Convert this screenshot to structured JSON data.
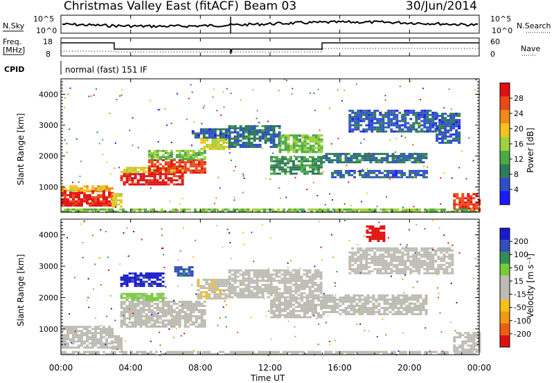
{
  "header": {
    "station": "Christmas Valley East (fitACF)",
    "beam": "Beam 03",
    "date": "30/Jun/2014"
  },
  "top_panels": {
    "nsky_label": "N.Sky",
    "nsearch_label": "N.Search",
    "nsky_ticks": [
      "10^5",
      "10^0"
    ],
    "nsearch_ticks": [
      "10^5",
      "10^0"
    ],
    "freq_label_1": "Freq.",
    "freq_label_2": "[MHz]",
    "freq_ticks": [
      "18",
      "8"
    ],
    "nave_ticks": [
      "60",
      "0"
    ],
    "nave_label": "Nave",
    "cpid_label": "CPID",
    "cpid_value": "normal (fast) 151 IF"
  },
  "x_axis": {
    "label": "Time UT",
    "ticks": [
      "00:00",
      "04:00",
      "08:00",
      "12:00",
      "16:00",
      "20:00",
      "00:00"
    ]
  },
  "colors": {
    "power": [
      "#1a1aff",
      "#2e4fc9",
      "#2f7a5a",
      "#4caa44",
      "#9fd13a",
      "#f5c31c",
      "#f18a19",
      "#ea4a14",
      "#e01010"
    ],
    "velocity": [
      "#e01010",
      "#ee5e10",
      "#f39a12",
      "#f4c019",
      "#bcbcb4",
      "#bcbcb4",
      "#7acb3a",
      "#2f8f55",
      "#3350b8",
      "#1a1acc"
    ]
  },
  "chart_data": [
    {
      "type": "heatmap",
      "name": "power",
      "ylabel": "Slant Range [km]",
      "xlabel": "",
      "x_range_hours": [
        0,
        24
      ],
      "ylim": [
        180,
        4500
      ],
      "yticks": [
        "1000",
        "2000",
        "3000",
        "4000"
      ],
      "colorbar": {
        "label": "Power [dB]",
        "range": [
          0,
          32
        ],
        "tick_labels": [
          "4",
          "8",
          "12",
          "16",
          "20",
          "24",
          "28"
        ]
      },
      "bands": [
        {
          "t0": 0.0,
          "t1": 2.9,
          "r0": 400,
          "r1": 900,
          "value": 30
        },
        {
          "t0": 0.0,
          "t1": 2.9,
          "r0": 850,
          "r1": 1050,
          "value": 20
        },
        {
          "t0": 2.9,
          "t1": 3.4,
          "r0": 350,
          "r1": 800,
          "value": 18
        },
        {
          "t0": 3.4,
          "t1": 7.0,
          "r0": 1050,
          "r1": 1450,
          "value": 30
        },
        {
          "t0": 3.4,
          "t1": 7.0,
          "r0": 1450,
          "r1": 1650,
          "value": 18
        },
        {
          "t0": 5.0,
          "t1": 8.3,
          "r0": 1450,
          "r1": 1900,
          "value": 28
        },
        {
          "t0": 5.0,
          "t1": 8.3,
          "r0": 1900,
          "r1": 2200,
          "value": 14
        },
        {
          "t0": 8.0,
          "t1": 9.6,
          "r0": 2200,
          "r1": 2600,
          "value": 18
        },
        {
          "t0": 7.5,
          "t1": 9.6,
          "r0": 2600,
          "r1": 2900,
          "value": 6
        },
        {
          "t0": 9.6,
          "t1": 12.5,
          "r0": 2300,
          "r1": 3000,
          "value": 8
        },
        {
          "t0": 12.5,
          "t1": 14.9,
          "r0": 2100,
          "r1": 2700,
          "value": 14
        },
        {
          "t0": 12.0,
          "t1": 14.9,
          "r0": 1400,
          "r1": 2000,
          "value": 10
        },
        {
          "t0": 15.0,
          "t1": 21.0,
          "r0": 1800,
          "r1": 2100,
          "value": 8
        },
        {
          "t0": 15.5,
          "t1": 21.0,
          "r0": 1300,
          "r1": 1550,
          "value": 6
        },
        {
          "t0": 16.5,
          "t1": 21.5,
          "r0": 2800,
          "r1": 3500,
          "value": 6
        },
        {
          "t0": 21.5,
          "t1": 22.8,
          "r0": 2400,
          "r1": 3400,
          "value": 6
        },
        {
          "t0": 22.5,
          "t1": 24.0,
          "r0": 250,
          "r1": 800,
          "value": 28
        },
        {
          "t0": 0.0,
          "t1": 24.0,
          "r0": 180,
          "r1": 300,
          "value": 14
        }
      ]
    },
    {
      "type": "heatmap",
      "name": "velocity",
      "ylabel": "Slant Range [km]",
      "xlabel": "Time UT",
      "x_range_hours": [
        0,
        24
      ],
      "ylim": [
        180,
        4500
      ],
      "yticks": [
        "1000",
        "2000",
        "3000",
        "4000"
      ],
      "colorbar": {
        "label": "Velocity [m s⁻¹]",
        "range": [
          -250,
          250
        ],
        "tick_labels": [
          "-200",
          "-100",
          "-50",
          "-15",
          "15",
          "50",
          "100",
          "200"
        ]
      },
      "bands": [
        {
          "t0": 0.0,
          "t1": 2.9,
          "r0": 400,
          "r1": 1100,
          "value": 0
        },
        {
          "t0": 2.9,
          "t1": 3.4,
          "r0": 350,
          "r1": 800,
          "value": 0
        },
        {
          "t0": 3.4,
          "t1": 8.3,
          "r0": 1050,
          "r1": 1900,
          "value": 0
        },
        {
          "t0": 3.4,
          "t1": 6.0,
          "r0": 1900,
          "r1": 2150,
          "value": 60
        },
        {
          "t0": 3.4,
          "t1": 5.8,
          "r0": 2400,
          "r1": 2800,
          "value": 210
        },
        {
          "t0": 6.5,
          "t1": 7.5,
          "r0": 2700,
          "r1": 3000,
          "value": 160
        },
        {
          "t0": 7.8,
          "t1": 9.6,
          "r0": 2000,
          "r1": 2600,
          "value": -40
        },
        {
          "t0": 9.6,
          "t1": 14.9,
          "r0": 2000,
          "r1": 2900,
          "value": 0
        },
        {
          "t0": 12.0,
          "t1": 14.9,
          "r0": 1400,
          "r1": 2000,
          "value": 0
        },
        {
          "t0": 15.0,
          "t1": 21.0,
          "r0": 1500,
          "r1": 2100,
          "value": 0
        },
        {
          "t0": 16.5,
          "t1": 22.5,
          "r0": 2800,
          "r1": 3600,
          "value": 0
        },
        {
          "t0": 17.5,
          "t1": 18.5,
          "r0": 3800,
          "r1": 4300,
          "value": -220
        },
        {
          "t0": 22.5,
          "t1": 24.0,
          "r0": 300,
          "r1": 900,
          "value": 0
        },
        {
          "t0": 0.0,
          "t1": 24.0,
          "r0": 180,
          "r1": 300,
          "value": 30
        }
      ]
    }
  ]
}
